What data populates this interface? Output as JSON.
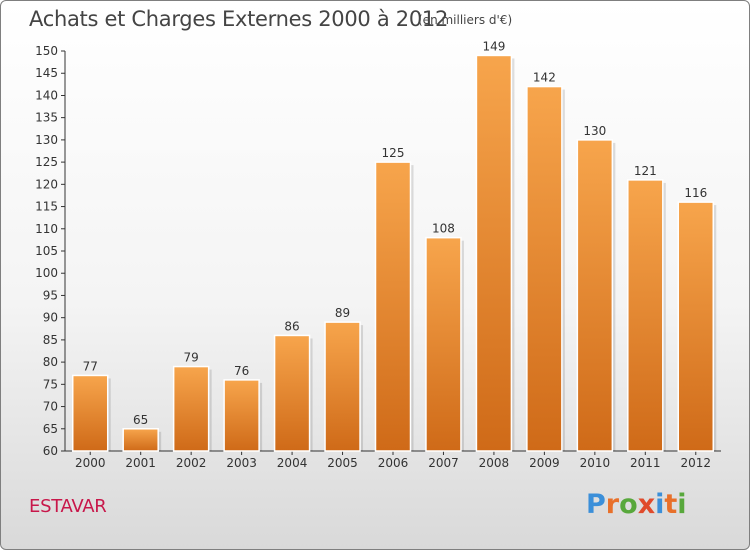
{
  "page": {
    "title": "Achats et Charges Externes 2000 à 2012",
    "subtitle": "(en milliers d'€)",
    "commune": "ESTAVAR",
    "logo_text": "Proxiti"
  },
  "colors": {
    "bar_light": "#f7a54c",
    "bar_dark": "#cf6a18",
    "commune": "#c8174a",
    "logo_letters": [
      "#3b8fd9",
      "#e8702a",
      "#58a83c",
      "#e04b2c",
      "#3b8fd9",
      "#e8702a",
      "#58a83c"
    ]
  },
  "chart_data": {
    "type": "bar",
    "title": "Achats et Charges Externes 2000 à 2012",
    "subtitle": "(en milliers d'€)",
    "xlabel": "",
    "ylabel": "",
    "categories": [
      "2000",
      "2001",
      "2002",
      "2003",
      "2004",
      "2005",
      "2006",
      "2007",
      "2008",
      "2009",
      "2010",
      "2011",
      "2012"
    ],
    "values": [
      77,
      65,
      79,
      76,
      86,
      89,
      125,
      108,
      149,
      142,
      130,
      121,
      116
    ],
    "ylim": [
      60,
      150
    ],
    "yticks": [
      60,
      65,
      70,
      75,
      80,
      85,
      90,
      95,
      100,
      105,
      110,
      115,
      120,
      125,
      130,
      135,
      140,
      145,
      150
    ],
    "grid": false,
    "data_labels": true
  }
}
